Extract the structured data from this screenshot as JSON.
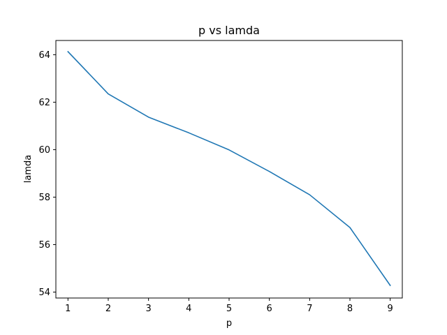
{
  "chart_data": {
    "type": "line",
    "title": "p vs lamda",
    "xlabel": "p",
    "ylabel": "lamda",
    "xlim": [
      0.7,
      9.3
    ],
    "ylim": [
      53.75,
      64.6
    ],
    "xticks": [
      1,
      2,
      3,
      4,
      5,
      6,
      7,
      8,
      9
    ],
    "yticks": [
      54,
      56,
      58,
      60,
      62,
      64
    ],
    "grid": false,
    "legend": "none",
    "series": [
      {
        "color": "#1f77b4",
        "x": [
          1,
          2,
          3,
          4,
          5,
          6,
          7,
          8,
          9
        ],
        "y": [
          64.13,
          62.35,
          61.37,
          60.71,
          59.99,
          59.08,
          58.1,
          56.72,
          54.28
        ]
      }
    ]
  }
}
